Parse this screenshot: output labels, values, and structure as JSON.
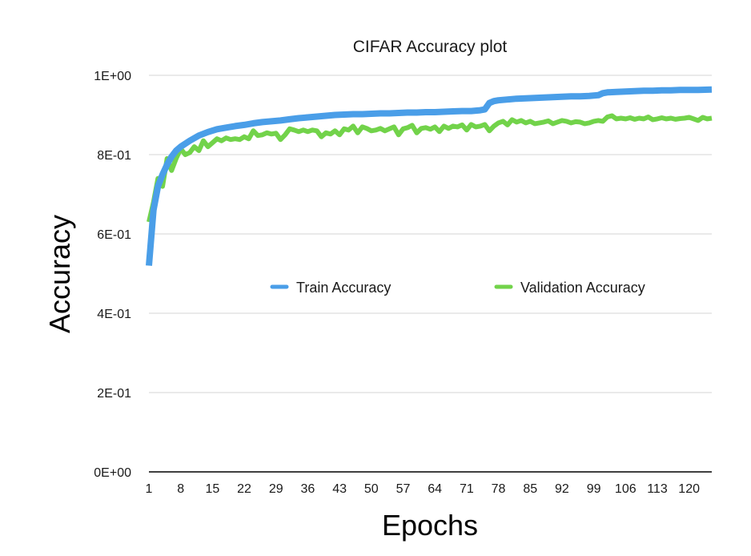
{
  "chart_data": {
    "type": "line",
    "title": "CIFAR Accuracy plot",
    "xlabel": "Epochs",
    "ylabel": "Accuracy",
    "x_tick_labels": [
      "1",
      "8",
      "15",
      "22",
      "29",
      "36",
      "43",
      "50",
      "57",
      "64",
      "71",
      "78",
      "85",
      "92",
      "99",
      "106",
      "113",
      "120"
    ],
    "y_tick_labels": [
      "0E+00",
      "2E-01",
      "4E-01",
      "6E-01",
      "8E-01",
      "1E+00"
    ],
    "ylim": [
      0,
      1
    ],
    "xlim": [
      1,
      125
    ],
    "grid": "horizontal",
    "legend_position": "center",
    "series": [
      {
        "name": "Train Accuracy",
        "color": "#4a9ee8",
        "x": [
          1,
          2,
          3,
          4,
          5,
          6,
          7,
          8,
          10,
          12,
          14,
          16,
          18,
          20,
          22,
          24,
          26,
          28,
          30,
          32,
          34,
          36,
          38,
          40,
          42,
          44,
          46,
          48,
          50,
          52,
          54,
          56,
          58,
          60,
          62,
          64,
          66,
          68,
          70,
          72,
          74,
          75,
          76,
          77,
          78,
          80,
          82,
          84,
          86,
          88,
          90,
          92,
          94,
          96,
          98,
          100,
          101,
          102,
          104,
          106,
          108,
          110,
          112,
          114,
          116,
          118,
          120,
          122,
          125
        ],
        "y": [
          0.52,
          0.66,
          0.72,
          0.75,
          0.775,
          0.795,
          0.81,
          0.82,
          0.835,
          0.848,
          0.857,
          0.864,
          0.868,
          0.872,
          0.875,
          0.879,
          0.882,
          0.884,
          0.886,
          0.889,
          0.892,
          0.894,
          0.896,
          0.898,
          0.9,
          0.901,
          0.902,
          0.902,
          0.903,
          0.904,
          0.904,
          0.905,
          0.906,
          0.906,
          0.907,
          0.907,
          0.908,
          0.909,
          0.91,
          0.91,
          0.912,
          0.914,
          0.93,
          0.935,
          0.937,
          0.939,
          0.941,
          0.942,
          0.943,
          0.944,
          0.945,
          0.946,
          0.947,
          0.947,
          0.948,
          0.95,
          0.955,
          0.957,
          0.958,
          0.959,
          0.96,
          0.961,
          0.961,
          0.962,
          0.962,
          0.963,
          0.963,
          0.963,
          0.964
        ]
      },
      {
        "name": "Validation Accuracy",
        "color": "#72d34a",
        "x": [
          1,
          2,
          3,
          4,
          5,
          6,
          7,
          8,
          9,
          10,
          11,
          12,
          13,
          14,
          15,
          16,
          17,
          18,
          19,
          20,
          21,
          22,
          23,
          24,
          25,
          26,
          27,
          28,
          29,
          30,
          31,
          32,
          33,
          34,
          35,
          36,
          37,
          38,
          39,
          40,
          41,
          42,
          43,
          44,
          45,
          46,
          47,
          48,
          49,
          50,
          51,
          52,
          53,
          54,
          55,
          56,
          57,
          58,
          59,
          60,
          61,
          62,
          63,
          64,
          65,
          66,
          67,
          68,
          69,
          70,
          71,
          72,
          73,
          74,
          75,
          76,
          77,
          78,
          79,
          80,
          81,
          82,
          83,
          84,
          85,
          86,
          87,
          88,
          89,
          90,
          91,
          92,
          93,
          94,
          95,
          96,
          97,
          98,
          99,
          100,
          101,
          102,
          103,
          104,
          105,
          106,
          107,
          108,
          109,
          110,
          111,
          112,
          113,
          114,
          115,
          116,
          117,
          118,
          119,
          120,
          121,
          122,
          123,
          124,
          125
        ],
        "y": [
          0.63,
          0.68,
          0.74,
          0.72,
          0.79,
          0.76,
          0.79,
          0.815,
          0.8,
          0.805,
          0.82,
          0.81,
          0.835,
          0.82,
          0.83,
          0.84,
          0.835,
          0.842,
          0.838,
          0.84,
          0.838,
          0.845,
          0.84,
          0.86,
          0.848,
          0.85,
          0.855,
          0.852,
          0.854,
          0.838,
          0.85,
          0.865,
          0.862,
          0.858,
          0.862,
          0.858,
          0.862,
          0.86,
          0.845,
          0.855,
          0.852,
          0.86,
          0.85,
          0.865,
          0.862,
          0.872,
          0.855,
          0.87,
          0.866,
          0.86,
          0.862,
          0.866,
          0.86,
          0.865,
          0.87,
          0.85,
          0.865,
          0.868,
          0.874,
          0.855,
          0.866,
          0.868,
          0.864,
          0.87,
          0.858,
          0.872,
          0.866,
          0.872,
          0.87,
          0.875,
          0.862,
          0.876,
          0.87,
          0.872,
          0.876,
          0.86,
          0.872,
          0.88,
          0.884,
          0.875,
          0.888,
          0.882,
          0.886,
          0.88,
          0.884,
          0.878,
          0.88,
          0.882,
          0.885,
          0.878,
          0.882,
          0.886,
          0.884,
          0.88,
          0.883,
          0.882,
          0.878,
          0.88,
          0.884,
          0.886,
          0.884,
          0.895,
          0.898,
          0.89,
          0.892,
          0.89,
          0.893,
          0.889,
          0.892,
          0.89,
          0.895,
          0.888,
          0.89,
          0.893,
          0.89,
          0.892,
          0.889,
          0.891,
          0.892,
          0.894,
          0.89,
          0.886,
          0.894,
          0.89,
          0.892
        ]
      }
    ]
  }
}
